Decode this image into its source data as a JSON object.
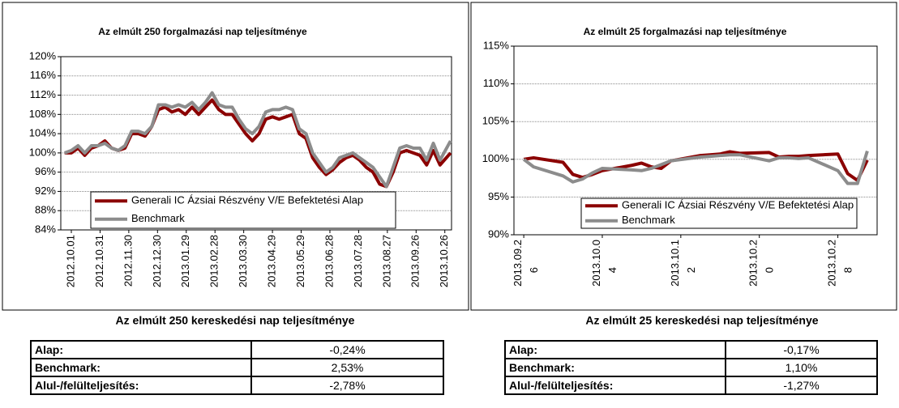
{
  "chart_data": [
    {
      "type": "line",
      "title": "Az elmúlt 250 forgalmazási nap teljesítménye",
      "x": [
        "2012.09.24",
        "2012.10.01",
        "2012.10.08",
        "2012.10.15",
        "2012.10.22",
        "2012.10.29",
        "2012.11.05",
        "2012.11.12",
        "2012.11.19",
        "2012.11.26",
        "2012.12.03",
        "2012.12.10",
        "2012.12.17",
        "2012.12.24",
        "2012.12.31",
        "2013.01.07",
        "2013.01.14",
        "2013.01.21",
        "2013.01.28",
        "2013.02.04",
        "2013.02.11",
        "2013.02.18",
        "2013.02.25",
        "2013.03.04",
        "2013.03.11",
        "2013.03.18",
        "2013.03.25",
        "2013.04.01",
        "2013.04.08",
        "2013.04.15",
        "2013.04.22",
        "2013.04.29",
        "2013.05.06",
        "2013.05.13",
        "2013.05.20",
        "2013.05.27",
        "2013.06.03",
        "2013.06.10",
        "2013.06.17",
        "2013.06.24",
        "2013.07.01",
        "2013.07.08",
        "2013.07.15",
        "2013.07.22",
        "2013.07.29",
        "2013.08.05",
        "2013.08.12",
        "2013.08.19",
        "2013.08.26",
        "2013.09.02",
        "2013.09.09",
        "2013.09.16",
        "2013.09.23",
        "2013.09.30",
        "2013.10.07",
        "2013.10.14",
        "2013.10.21",
        "2013.11.01"
      ],
      "xlim": [
        "2012.09.20",
        "2013.11.02"
      ],
      "xticks": [
        "2012.10.01",
        "2012.10.31",
        "2012.11.30",
        "2012.12.30",
        "2013.01.29",
        "2013.02.28",
        "2013.03.30",
        "2013.04.29",
        "2013.05.29",
        "2013.06.28",
        "2013.07.28",
        "2013.08.27",
        "2013.09.26",
        "2013.10.26"
      ],
      "ylim": [
        84,
        120
      ],
      "yticks": [
        {
          "value": 84,
          "label": "84%"
        },
        {
          "value": 88,
          "label": "88%"
        },
        {
          "value": 92,
          "label": "92%"
        },
        {
          "value": 96,
          "label": "96%"
        },
        {
          "value": 100,
          "label": "100%"
        },
        {
          "value": 104,
          "label": "104%"
        },
        {
          "value": 108,
          "label": "108%"
        },
        {
          "value": 112,
          "label": "112%"
        },
        {
          "value": 116,
          "label": "116%"
        },
        {
          "value": 120,
          "label": "120%"
        }
      ],
      "grid": true,
      "legend": "bottom",
      "series": [
        {
          "name": "Generali IC Ázsiai Részvény V/E Befektetési Alap",
          "color": "#8b0000",
          "values": [
            100,
            100,
            101,
            99.5,
            101,
            101.5,
            102.5,
            101,
            100.5,
            101,
            104,
            104,
            103.5,
            105.5,
            109,
            109.5,
            108.5,
            109,
            108,
            109.5,
            108,
            109.5,
            111,
            109,
            108,
            108,
            106,
            104,
            102.5,
            104,
            107,
            107.5,
            107,
            107.5,
            108,
            104,
            103,
            99,
            97,
            95.5,
            96.5,
            98,
            99,
            99.5,
            98.5,
            97,
            96,
            93.5,
            93,
            96,
            100,
            100.5,
            100,
            99.5,
            97.5,
            100.5,
            97.5,
            100
          ]
        },
        {
          "name": "Benchmark",
          "color": "#8c8c8c",
          "values": [
            100,
            100.5,
            101.5,
            100,
            101.5,
            101.5,
            102,
            101,
            100.5,
            101.5,
            104.5,
            104.5,
            104,
            105.5,
            110,
            110,
            109.5,
            110,
            109.5,
            110.5,
            109,
            110.5,
            112.5,
            110,
            109.5,
            109.5,
            107,
            105,
            104,
            105.5,
            108.5,
            109,
            109,
            109.5,
            109,
            105,
            104,
            100,
            98,
            96,
            97,
            99,
            99.5,
            100,
            99,
            98,
            97,
            95,
            93,
            97,
            101,
            101.5,
            101,
            101,
            98.5,
            102,
            98.5,
            102.5
          ]
        }
      ]
    },
    {
      "type": "line",
      "title": "Az elmúlt 25 forgalmazási nap teljesítménye",
      "x": [
        "2013.09.26",
        "2013.09.27",
        "2013.09.30",
        "2013.10.01",
        "2013.10.02",
        "2013.10.03",
        "2013.10.04",
        "2013.10.07",
        "2013.10.08",
        "2013.10.09",
        "2013.10.10",
        "2013.10.11",
        "2013.10.14",
        "2013.10.15",
        "2013.10.16",
        "2013.10.17",
        "2013.10.18",
        "2013.10.21",
        "2013.10.22",
        "2013.10.23",
        "2013.10.24",
        "2013.10.25",
        "2013.10.28",
        "2013.10.29",
        "2013.10.30",
        "2013.10.31"
      ],
      "xlim": [
        "2013.09.25",
        "2013.11.01"
      ],
      "xticks": [
        "2013.09.26",
        "2013.10.04",
        "2013.10.12",
        "2013.10.20",
        "2013.10.28"
      ],
      "ylim": [
        90,
        115
      ],
      "yticks": [
        {
          "value": 90,
          "label": "90%"
        },
        {
          "value": 95,
          "label": "95%"
        },
        {
          "value": 100,
          "label": "100%"
        },
        {
          "value": 105,
          "label": "105%"
        },
        {
          "value": 110,
          "label": "110%"
        },
        {
          "value": 115,
          "label": "115%"
        }
      ],
      "grid": true,
      "legend": "bottom",
      "series": [
        {
          "name": "Generali IC Ázsiai Részvény V/E Befektetési Alap",
          "color": "#8b0000",
          "values": [
            100,
            100.2,
            99.6,
            98.0,
            97.6,
            98.0,
            98.5,
            99.2,
            99.5,
            99.0,
            98.8,
            99.8,
            100.5,
            100.6,
            100.7,
            101.0,
            100.8,
            100.9,
            100.3,
            100.4,
            100.4,
            100.5,
            100.7,
            98.1,
            97.2,
            99.9
          ]
        },
        {
          "name": "Benchmark",
          "color": "#8c8c8c",
          "values": [
            100,
            99,
            97.8,
            97.0,
            97.4,
            98.2,
            98.8,
            98.6,
            98.5,
            98.8,
            99.3,
            99.8,
            100.3,
            100.4,
            100.5,
            100.6,
            100.6,
            99.8,
            100.2,
            100.2,
            100.1,
            100.2,
            98.5,
            96.8,
            96.8,
            101.1
          ]
        }
      ]
    }
  ],
  "captions": [
    "Az elmúlt 250 kereskedési nap teljesítménye",
    "Az elmúlt 25 kereskedési nap teljesítménye"
  ],
  "tables": [
    {
      "rows": [
        [
          "Alap:",
          "-0,24%"
        ],
        [
          "Benchmark:",
          "2,53%"
        ],
        [
          "Alul-/felülteljesítés:",
          "-2,78%"
        ]
      ]
    },
    {
      "rows": [
        [
          "Alap:",
          "-0,17%"
        ],
        [
          "Benchmark:",
          "1,10%"
        ],
        [
          "Alul-/felülteljesítés:",
          "-1,27%"
        ]
      ]
    }
  ]
}
